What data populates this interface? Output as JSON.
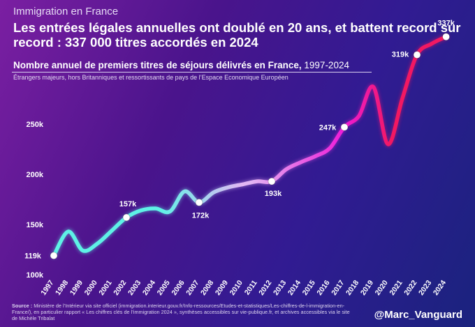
{
  "header": {
    "kicker": "Immigration en France",
    "headline": "Les entrées légales annuelles ont doublé en 20 ans, et battent record sur record : 337 000 titres accordés en 2024",
    "subtitle_main": "Nombre annuel de premiers titres de séjours délivrés en France,",
    "subtitle_years": " 1997-2024",
    "scope_note": "Étrangers majeurs, hors Britanniques et ressortissants de pays de l’Espace Economique Européen"
  },
  "footer": {
    "source_label": "Source :",
    "source_text": " Ministère de l’Intérieur via site officiel (immigration.interieur.gouv.fr/Info-ressources/Etudes-et-statistiques/Les-chiffres-de-l-immigration-en-France/), en particulier rapport « Les chiffres clés de l’immigration 2024 », synthèses accessibles sur vie-publique.fr, et archives accessibles via le site de Michèle Tribalat",
    "handle": "@Marc_Vanguard"
  },
  "colors": {
    "background_start": "#7b1fa2",
    "background_end": "#1a237e",
    "line_start": "#5ef2e6",
    "line_mid": "#e2b8f4",
    "line_magenta": "#ee1bd8",
    "line_end": "#f21862",
    "marker": "#ffffff"
  },
  "chart_data": {
    "type": "line",
    "title": "Nombre annuel de premiers titres de séjours délivrés en France, 1997-2024",
    "xlabel": "",
    "ylabel": "",
    "x": [
      "1997",
      "1998",
      "1999",
      "2000",
      "2001",
      "2002",
      "2003",
      "2004",
      "2005",
      "2006",
      "2007",
      "2008",
      "2009",
      "2010",
      "2011",
      "2012",
      "2013",
      "2014",
      "2015",
      "2016",
      "2017",
      "2018",
      "2019",
      "2020",
      "2021",
      "2022",
      "2023",
      "2024"
    ],
    "series": [
      {
        "values": [
          119,
          143,
          124,
          131,
          144,
          157,
          164,
          166,
          163,
          183,
          172,
          182,
          187,
          190,
          193,
          193,
          205,
          212,
          218,
          226,
          247,
          258,
          287,
          230,
          276,
          319,
          330,
          337
        ]
      }
    ],
    "yticks": [
      100,
      150,
      200,
      250
    ],
    "ytick_labels": [
      "100k",
      "150k",
      "200k",
      "250k"
    ],
    "ylim": [
      100,
      350
    ],
    "smooth": true,
    "grid": false,
    "legend": "none",
    "annotations": [
      {
        "x": "1997",
        "label": "119k"
      },
      {
        "x": "2002",
        "label": "157k"
      },
      {
        "x": "2007",
        "label": "172k"
      },
      {
        "x": "2012",
        "label": "193k"
      },
      {
        "x": "2017",
        "label": "247k"
      },
      {
        "x": "2022",
        "label": "319k"
      },
      {
        "x": "2024",
        "label": "337k"
      }
    ]
  }
}
